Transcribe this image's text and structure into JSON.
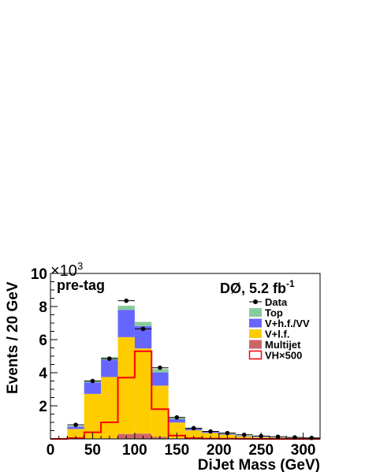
{
  "chart_data": {
    "type": "bar",
    "stacked": true,
    "title": "",
    "xlabel": "DiJet Mass (GeV)",
    "ylabel": "Events / 20 GeV",
    "y_multiplier": "×10",
    "y_multiplier_exp": "3",
    "xlim": [
      0,
      320
    ],
    "ylim": [
      0,
      10000
    ],
    "bin_width": 20,
    "x_ticks": [
      0,
      50,
      100,
      150,
      200,
      250,
      300
    ],
    "y_ticks": [
      2,
      4,
      6,
      8,
      10
    ],
    "y_tick_values": [
      2000,
      4000,
      6000,
      8000,
      10000
    ],
    "bin_edges": [
      0,
      20,
      40,
      60,
      80,
      100,
      120,
      140,
      160,
      180,
      200,
      220,
      240,
      260,
      280,
      300,
      320
    ],
    "annotation_left": "pre-tag",
    "annotation_right": "DØ, 5.2 fb",
    "annotation_right_sup": "-1",
    "series": [
      {
        "name": "Multijet",
        "color": "#cc6666",
        "values": [
          0,
          0,
          20,
          40,
          300,
          320,
          120,
          40,
          20,
          10,
          5,
          5,
          0,
          0,
          0,
          0
        ]
      },
      {
        "name": "V+l.f.",
        "color": "#ffcc00",
        "values": [
          0,
          600,
          2700,
          3700,
          5850,
          5150,
          3100,
          950,
          500,
          350,
          250,
          150,
          100,
          70,
          40,
          20
        ]
      },
      {
        "name": "V+h.f./VV",
        "color": "#6666ff",
        "values": [
          0,
          150,
          700,
          1050,
          1650,
          1350,
          800,
          200,
          100,
          70,
          50,
          30,
          20,
          10,
          10,
          5
        ]
      },
      {
        "name": "Top",
        "color": "#88cc99",
        "values": [
          0,
          30,
          80,
          150,
          250,
          250,
          200,
          100,
          50,
          30,
          20,
          15,
          10,
          10,
          5,
          5
        ]
      }
    ],
    "signal": {
      "name": "VH×500",
      "color": "#ff0000",
      "values": [
        0,
        50,
        400,
        1000,
        3700,
        5300,
        1800,
        200,
        50,
        20,
        10,
        5,
        0,
        0,
        0,
        0
      ]
    },
    "data": {
      "name": "Data",
      "x": [
        30,
        50,
        70,
        90,
        110,
        130,
        150,
        170,
        190,
        210,
        230,
        250,
        270,
        290,
        310
      ],
      "y": [
        850,
        3500,
        4850,
        8350,
        6650,
        4300,
        1300,
        650,
        450,
        350,
        250,
        170,
        130,
        90,
        60
      ]
    },
    "legend": {
      "position": "top-right",
      "entries": [
        {
          "label": "Data",
          "kind": "marker",
          "color": "#000000"
        },
        {
          "label": "Top",
          "kind": "fill",
          "color": "#88cc99"
        },
        {
          "label": "V+h.f./VV",
          "kind": "fill",
          "color": "#6666ff"
        },
        {
          "label": "V+l.f.",
          "kind": "fill",
          "color": "#ffcc00"
        },
        {
          "label": "Multijet",
          "kind": "fill",
          "color": "#cc6666"
        },
        {
          "label": "VH×500",
          "kind": "line",
          "color": "#ff0000"
        }
      ]
    }
  }
}
